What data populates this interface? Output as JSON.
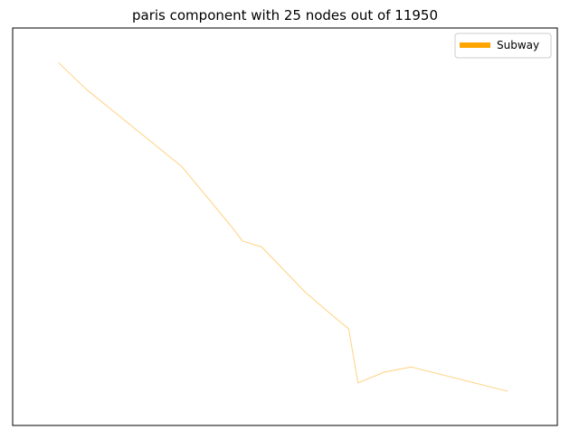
{
  "chart_data": {
    "type": "line",
    "title": "paris component with 25 nodes out of 11950",
    "xlabel": "",
    "ylabel": "",
    "axes_ticks": false,
    "grid": false,
    "legend": {
      "placement": "top-right",
      "entries": [
        {
          "name": "Subway",
          "color": "#ffa500"
        }
      ]
    },
    "xlim": [
      0,
      100
    ],
    "ylim": [
      0,
      100
    ],
    "series": [
      {
        "name": "Subway",
        "color": "#ffa500",
        "alpha": 0.5,
        "x": [
          8.4,
          13.5,
          31.0,
          40.5,
          42.2,
          45.7,
          53.8,
          58.5,
          61.7,
          63.4,
          68.2,
          73.2,
          90.9
        ],
        "y": [
          91.3,
          84.6,
          65.2,
          49.5,
          46.4,
          44.9,
          33.4,
          27.9,
          24.3,
          10.7,
          13.4,
          14.7,
          8.6
        ]
      }
    ]
  }
}
